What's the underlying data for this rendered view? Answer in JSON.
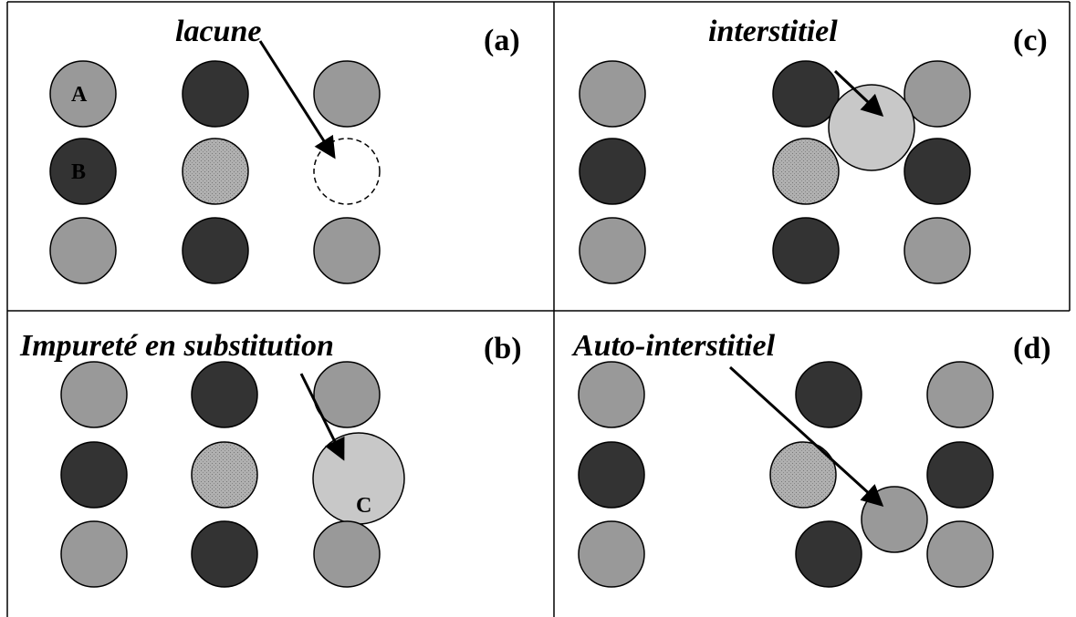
{
  "panels": [
    {
      "tag": "(a)",
      "caption": "lacune",
      "atoms": [
        "A",
        "B"
      ]
    },
    {
      "tag": "(c)",
      "caption": "interstitiel"
    },
    {
      "tag": "(b)",
      "caption": "Impureté en substitution",
      "atoms": [
        "C"
      ]
    },
    {
      "tag": "(d)",
      "caption": "Auto-interstitiel"
    }
  ]
}
